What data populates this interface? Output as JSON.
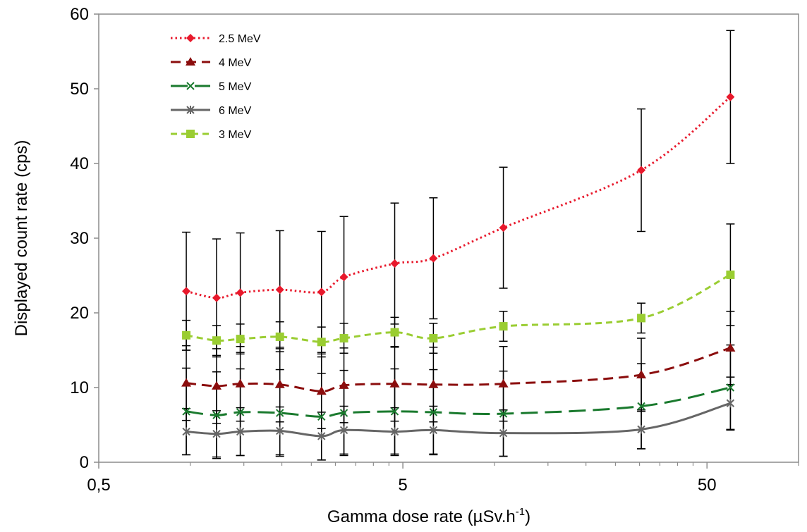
{
  "chart_data": {
    "type": "line",
    "xlabel": "Gamma dose rate (µSv.h",
    "xlabel_superscript": "-1",
    "xlabel_close": ")",
    "ylabel": "Displayed count rate (cps)",
    "x_scale": "log",
    "xlim": [
      0.5,
      100
    ],
    "ylim": [
      0,
      60
    ],
    "x_ticks": [
      0.5,
      5,
      50
    ],
    "x_tick_labels": [
      "0,5",
      "5",
      "50"
    ],
    "y_ticks": [
      0,
      10,
      20,
      30,
      40,
      50,
      60
    ],
    "y_tick_labels": [
      "0",
      "10",
      "20",
      "30",
      "40",
      "50",
      "60"
    ],
    "grid": false,
    "legend_position": "top-left",
    "x": [
      0.97,
      1.22,
      1.46,
      1.97,
      2.7,
      3.2,
      4.7,
      6.3,
      10.7,
      30.4,
      59.7
    ],
    "series": [
      {
        "name": "2.5 MeV",
        "color": "#e8192c",
        "dash": "dotted",
        "marker": "diamond",
        "values": [
          22.9,
          22.0,
          22.7,
          23.1,
          22.8,
          24.8,
          26.6,
          27.3,
          31.4,
          39.1,
          48.9
        ],
        "errors": [
          7.9,
          7.9,
          8.0,
          7.9,
          8.1,
          8.1,
          8.1,
          8.1,
          8.1,
          8.2,
          8.9
        ]
      },
      {
        "name": "4 MeV",
        "color": "#8b0d0d",
        "dash": "dashed",
        "marker": "triangle",
        "values": [
          10.6,
          10.2,
          10.5,
          10.4,
          9.5,
          10.3,
          10.5,
          10.4,
          10.5,
          11.7,
          15.3
        ],
        "errors": [
          5.0,
          5.0,
          5.0,
          5.0,
          5.0,
          5.0,
          5.0,
          5.0,
          5.0,
          4.9,
          4.9
        ]
      },
      {
        "name": "5 MeV",
        "color": "#1a7a2e",
        "dash": "longdash",
        "marker": "x",
        "values": [
          6.8,
          6.3,
          6.7,
          6.6,
          6.1,
          6.6,
          6.8,
          6.7,
          6.5,
          7.5,
          10.0
        ],
        "errors": [
          5.8,
          5.8,
          5.8,
          5.8,
          5.8,
          5.7,
          5.7,
          5.7,
          5.7,
          5.7,
          5.7
        ]
      },
      {
        "name": "6 MeV",
        "color": "#666666",
        "dash": "solid",
        "marker": "star",
        "values": [
          4.1,
          3.8,
          4.1,
          4.2,
          3.5,
          4.3,
          4.1,
          4.3,
          3.9,
          4.4,
          7.9
        ],
        "errors": [
          3.1,
          3.1,
          3.2,
          3.2,
          3.2,
          3.2,
          3.2,
          3.2,
          3.1,
          2.6,
          3.5
        ]
      },
      {
        "name": "3 MeV",
        "color": "#9acd32",
        "dash": "shortdash",
        "marker": "square",
        "values": [
          17.0,
          16.3,
          16.5,
          16.8,
          16.1,
          16.6,
          17.4,
          16.6,
          18.2,
          19.3,
          25.1
        ],
        "errors": [
          2.0,
          2.0,
          2.0,
          2.0,
          2.0,
          2.0,
          2.0,
          2.0,
          2.0,
          2.0,
          6.8
        ]
      }
    ]
  }
}
